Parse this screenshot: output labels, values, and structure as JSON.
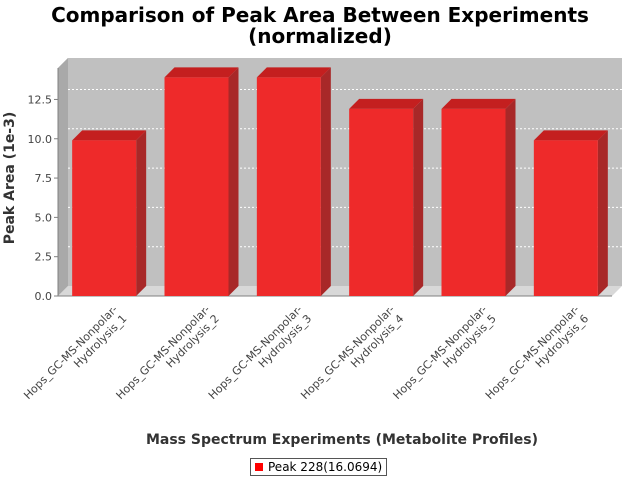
{
  "chart_data": {
    "type": "bar",
    "title_line1": "Comparison of Peak Area Between Experiments",
    "title_line2": "(normalized)",
    "xlabel": "Mass Spectrum Experiments (Metabolite Profiles)",
    "ylabel": "Peak Area (1e-3)",
    "ylim": [
      0,
      14.5
    ],
    "yticks": [
      "0.0",
      "2.5",
      "5.0",
      "7.5",
      "10.0",
      "12.5"
    ],
    "categories": [
      "Hops_GC-MS-Nonpolar-Hydrolysis_1",
      "Hops_GC-MS-Nonpolar-Hydrolysis_2",
      "Hops_GC-MS-Nonpolar-Hydrolysis_3",
      "Hops_GC-MS-Nonpolar-Hydrolysis_4",
      "Hops_GC-MS-Nonpolar-Hydrolysis_5",
      "Hops_GC-MS-Nonpolar-Hydrolysis_6"
    ],
    "category_lines": [
      [
        "Hops_GC-MS-Nonpolar-",
        "Hydrolysis_1"
      ],
      [
        "Hops_GC-MS-Nonpolar-",
        "Hydrolysis_2"
      ],
      [
        "Hops_GC-MS-Nonpolar-",
        "Hydrolysis_3"
      ],
      [
        "Hops_GC-MS-Nonpolar-",
        "Hydrolysis_4"
      ],
      [
        "Hops_GC-MS-Nonpolar-",
        "Hydrolysis_5"
      ],
      [
        "Hops_GC-MS-Nonpolar-",
        "Hydrolysis_6"
      ]
    ],
    "series": [
      {
        "name": "Peak 228(16.0694)",
        "values": [
          9.9,
          13.9,
          13.9,
          11.9,
          11.9,
          9.9
        ]
      }
    ],
    "grid": true,
    "legend_position": "bottom-center",
    "colors": {
      "bar_front": "#ee2a2a",
      "bar_top": "#c41f1f",
      "bar_side": "#a82828",
      "plot_bg": "#c0c0c0",
      "legend_swatch": "#ff0000"
    }
  }
}
